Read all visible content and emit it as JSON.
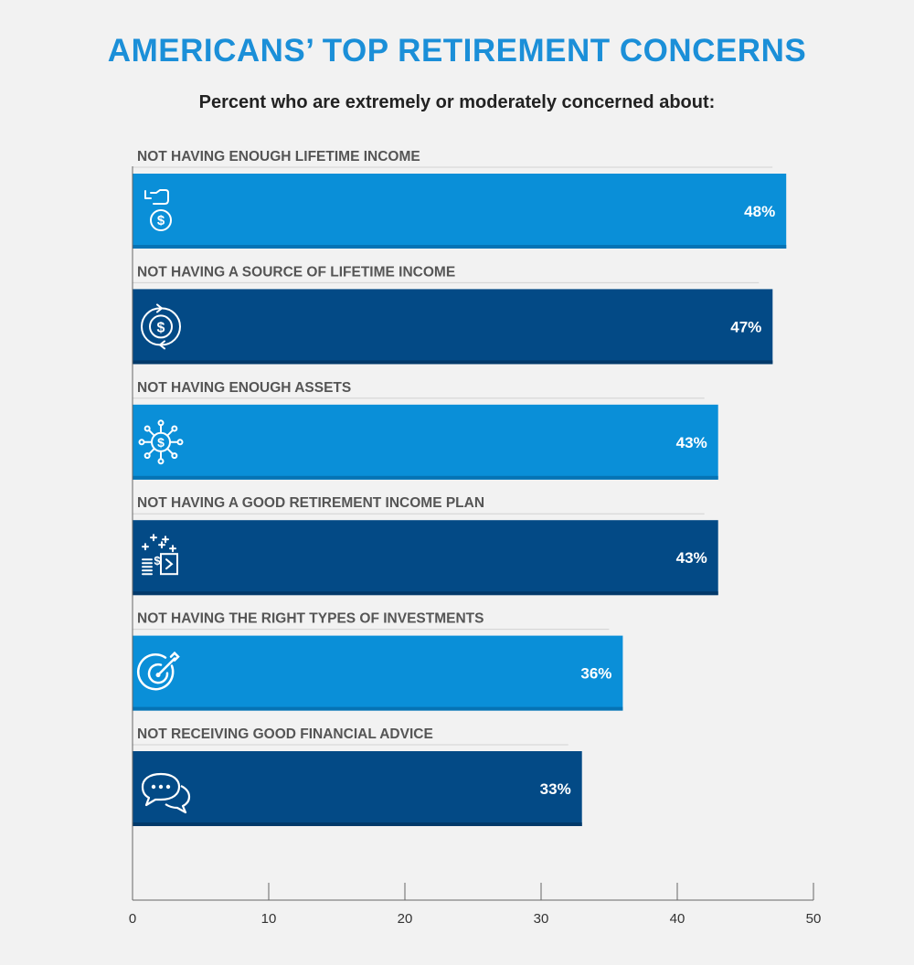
{
  "title": "AMERICANS’ TOP RETIREMENT CONCERNS",
  "subtitle": "Percent who are extremely or moderately concerned about:",
  "colors": {
    "light": "#0a8fd8",
    "dark": "#034a86",
    "light_shadow": "#0673b4",
    "dark_shadow": "#02396a"
  },
  "chart_data": {
    "type": "bar",
    "orientation": "horizontal",
    "title": "AMERICANS’ TOP RETIREMENT CONCERNS",
    "subtitle": "Percent who are extremely or moderately concerned about:",
    "categories": [
      "NOT HAVING ENOUGH LIFETIME INCOME",
      "NOT HAVING A SOURCE OF LIFETIME INCOME",
      "NOT HAVING ENOUGH ASSETS",
      "NOT HAVING A GOOD RETIREMENT INCOME PLAN",
      "NOT HAVING THE RIGHT TYPES OF INVESTMENTS",
      "NOT RECEIVING GOOD FINANCIAL ADVICE"
    ],
    "values": [
      48,
      47,
      43,
      43,
      36,
      33
    ],
    "value_labels": [
      "48%",
      "47%",
      "43%",
      "43%",
      "36%",
      "33%"
    ],
    "icons": [
      "money-bag-hand-icon",
      "dollar-cycle-icon",
      "dollar-network-icon",
      "plan-growth-icon",
      "target-icon",
      "chat-bubbles-icon"
    ],
    "xlim": [
      0,
      50
    ],
    "xticks": [
      0,
      10,
      20,
      30,
      40,
      50
    ],
    "xtick_labels": [
      "0",
      "10",
      "20",
      "30",
      "40",
      "50"
    ],
    "grid": false,
    "legend": "none"
  }
}
